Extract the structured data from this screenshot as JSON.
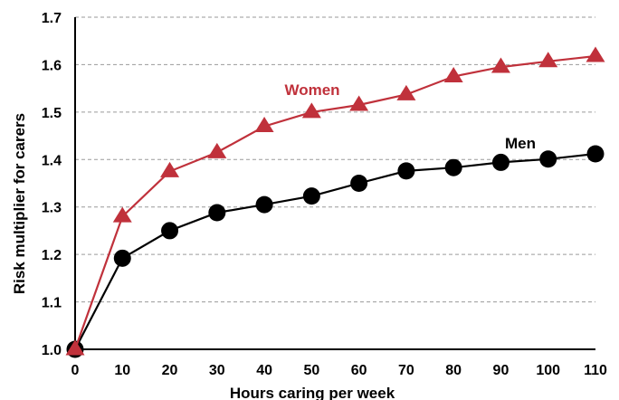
{
  "chart_data": {
    "type": "line",
    "title": "",
    "xlabel": "Hours caring per week",
    "ylabel": "Risk multiplier for carers",
    "x": [
      0,
      10,
      20,
      30,
      40,
      50,
      60,
      70,
      80,
      90,
      100,
      110
    ],
    "x_tick_labels": [
      "0",
      "10",
      "20",
      "30",
      "40",
      "50",
      "60",
      "70",
      "80",
      "90",
      "100",
      "110"
    ],
    "y_tick_labels": [
      "1.0",
      "1.1",
      "1.2",
      "1.3",
      "1.4",
      "1.5",
      "1.6",
      "1.7"
    ],
    "y_ticks": [
      1.0,
      1.1,
      1.2,
      1.3,
      1.4,
      1.5,
      1.6,
      1.7
    ],
    "xlim": [
      0,
      110
    ],
    "ylim": [
      1.0,
      1.7
    ],
    "grid": "horizontal dashed",
    "legend": "inline labels",
    "series": [
      {
        "name": "Women",
        "color": "#c0313b",
        "marker": "triangle",
        "values": [
          1.0,
          1.28,
          1.375,
          1.415,
          1.47,
          1.5,
          1.515,
          1.537,
          1.575,
          1.595,
          1.607,
          1.618
        ]
      },
      {
        "name": "Men",
        "color": "#000000",
        "marker": "circle",
        "values": [
          1.0,
          1.192,
          1.25,
          1.288,
          1.305,
          1.323,
          1.35,
          1.376,
          1.383,
          1.394,
          1.401,
          1.412
        ]
      }
    ]
  }
}
